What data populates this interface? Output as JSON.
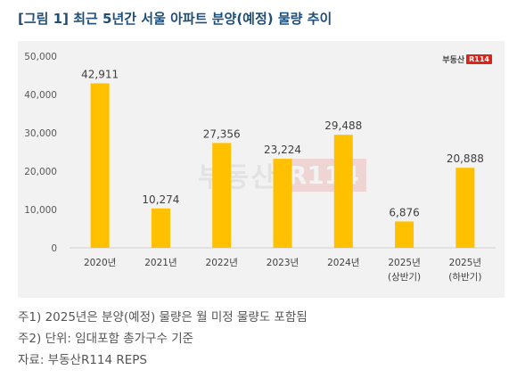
{
  "title": "[그림 1] 최근 5년간 서울 아파트 분양(예정) 물량 추이",
  "logo": {
    "text": "부동산",
    "badge": "R114"
  },
  "watermark": {
    "text": "부동산",
    "badge": "R114"
  },
  "colors": {
    "bar": "#ffc000",
    "title": "#1f4e79",
    "panel": "#f2f2f2"
  },
  "chart_data": {
    "type": "bar",
    "categories": [
      [
        "2020년"
      ],
      [
        "2021년"
      ],
      [
        "2022년"
      ],
      [
        "2023년"
      ],
      [
        "2024년"
      ],
      [
        "2025년",
        "(상반기)"
      ],
      [
        "2025년",
        "(하반기)"
      ]
    ],
    "values": [
      42911,
      10274,
      27356,
      23224,
      29488,
      6876,
      20888
    ],
    "value_labels": [
      "42,911",
      "10,274",
      "27,356",
      "23,224",
      "29,488",
      "6,876",
      "20,888"
    ],
    "ylim": [
      0,
      50000
    ],
    "yticks": [
      0,
      10000,
      20000,
      30000,
      40000,
      50000
    ],
    "ytick_labels": [
      "0",
      "10,000",
      "20,000",
      "30,000",
      "40,000",
      "50,000"
    ],
    "grid": false
  },
  "notes": [
    "주1) 2025년은 분양(예정) 물량은 월 미정 물량도 포함됨",
    "주2) 단위: 임대포함 총가구수 기준",
    "자료: 부동산R114 REPS"
  ]
}
